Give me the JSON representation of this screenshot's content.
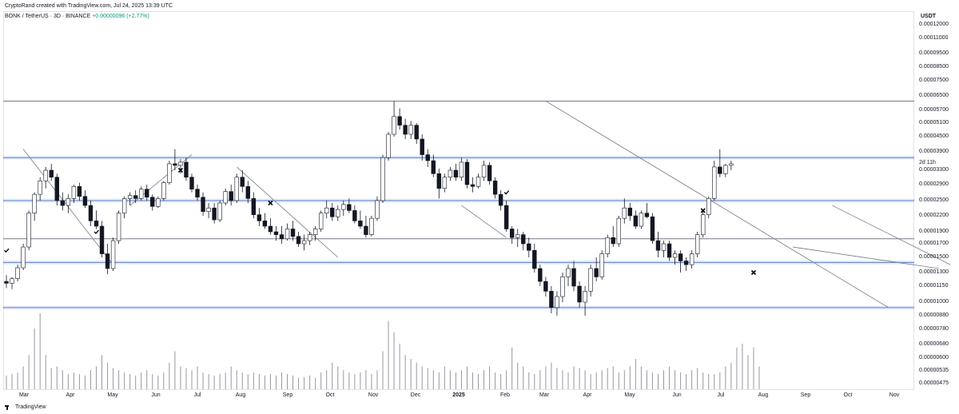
{
  "header": {
    "credit": "CryptoRand created with TradingView.com, Jul 24, 2025 13:39 UTC"
  },
  "symbol": {
    "name": "BONK / TetherUS · 3D · BINANCE",
    "change": "+0.00000096 (+2.77%)"
  },
  "axis": {
    "currency": "USDT",
    "countdown": "2d 11h"
  },
  "footer": {
    "brand": "TradingView"
  },
  "chart_data": {
    "type": "candlestick",
    "title": "",
    "xlabel": "",
    "ylabel": "",
    "price_ticks": [
      "0.00012000",
      "0.00011000",
      "0.00009500",
      "0.00008500",
      "0.00007500",
      "0.00006500",
      "0.00005700",
      "0.00005100",
      "0.00004500",
      "0.00003900",
      "0.00003300",
      "0.00002900",
      "0.00002500",
      "0.00002200",
      "0.00001900",
      "0.00001700",
      "0.00001500",
      "0.00001300",
      "0.00001150",
      "0.00001000",
      "0.00000880",
      "0.00000780",
      "0.00000680",
      "0.00000600",
      "0.00000535",
      "0.00000475"
    ],
    "time_ticks": [
      "Mar",
      "Apr",
      "May",
      "Jun",
      "Jul",
      "Aug",
      "Sep",
      "Oct",
      "Nov",
      "Dec",
      "2025",
      "Feb",
      "Mar",
      "Apr",
      "May",
      "Jun",
      "Jul",
      "Aug",
      "Sep",
      "Oct",
      "Nov"
    ],
    "horizontal_levels": [
      {
        "price": 6.2e-05,
        "style": "gray"
      },
      {
        "price": 3.7e-05,
        "style": "blue"
      },
      {
        "price": 2.5e-05,
        "style": "blue"
      },
      {
        "price": 1.78e-05,
        "style": "gray"
      },
      {
        "price": 1.43e-05,
        "style": "blue"
      },
      {
        "price": 9.5e-06,
        "style": "blue"
      }
    ],
    "grid": false,
    "candles": [
      [
        1.2e-05,
        1.27e-05,
        1.13e-05,
        1.18e-05
      ],
      [
        1.18e-05,
        1.25e-05,
        1.12e-05,
        1.23e-05
      ],
      [
        1.23e-05,
        1.4e-05,
        1.2e-05,
        1.36e-05
      ],
      [
        1.36e-05,
        1.7e-05,
        1.33e-05,
        1.65e-05
      ],
      [
        1.65e-05,
        2.3e-05,
        1.6e-05,
        2.25e-05
      ],
      [
        2.25e-05,
        2.7e-05,
        2.1e-05,
        2.65e-05
      ],
      [
        2.65e-05,
        3.1e-05,
        2.5e-05,
        3e-05
      ],
      [
        3e-05,
        3.4e-05,
        2.8e-05,
        3.3e-05
      ],
      [
        3.3e-05,
        3.5e-05,
        3e-05,
        3.1e-05
      ],
      [
        3.1e-05,
        3.2e-05,
        2.4e-05,
        2.5e-05
      ],
      [
        2.5e-05,
        2.7e-05,
        2.3e-05,
        2.4e-05
      ],
      [
        2.4e-05,
        2.65e-05,
        2.25e-05,
        2.55e-05
      ],
      [
        2.55e-05,
        2.9e-05,
        2.45e-05,
        2.85e-05
      ],
      [
        2.85e-05,
        2.95e-05,
        2.5e-05,
        2.6e-05
      ],
      [
        2.6e-05,
        2.75e-05,
        2.35e-05,
        2.4e-05
      ],
      [
        2.4e-05,
        2.5e-05,
        2e-05,
        2.1e-05
      ],
      [
        2.1e-05,
        2.3e-05,
        1.95e-05,
        2e-05
      ],
      [
        2e-05,
        2.1e-05,
        1.5e-05,
        1.55e-05
      ],
      [
        1.55e-05,
        1.7e-05,
        1.28e-05,
        1.35e-05
      ],
      [
        1.35e-05,
        1.8e-05,
        1.32e-05,
        1.75e-05
      ],
      [
        1.75e-05,
        2.3e-05,
        1.7e-05,
        2.25e-05
      ],
      [
        2.25e-05,
        2.6e-05,
        2.15e-05,
        2.55e-05
      ],
      [
        2.55e-05,
        2.7e-05,
        2.4e-05,
        2.62e-05
      ],
      [
        2.62e-05,
        2.75e-05,
        2.45e-05,
        2.55e-05
      ],
      [
        2.55e-05,
        2.85e-05,
        2.5e-05,
        2.78e-05
      ],
      [
        2.78e-05,
        2.9e-05,
        2.5e-05,
        2.58e-05
      ],
      [
        2.58e-05,
        2.65e-05,
        2.3e-05,
        2.38e-05
      ],
      [
        2.38e-05,
        2.6e-05,
        2.35e-05,
        2.55e-05
      ],
      [
        2.55e-05,
        3e-05,
        2.5e-05,
        2.95e-05
      ],
      [
        2.95e-05,
        3.6e-05,
        2.9e-05,
        3.5e-05
      ],
      [
        3.5e-05,
        4e-05,
        3.3e-05,
        3.45e-05
      ],
      [
        3.45e-05,
        3.65e-05,
        3.2e-05,
        3.55e-05
      ],
      [
        3.55e-05,
        3.7e-05,
        3e-05,
        3.1e-05
      ],
      [
        3.1e-05,
        3.2e-05,
        2.7e-05,
        2.78e-05
      ],
      [
        2.78e-05,
        2.9e-05,
        2.5e-05,
        2.58e-05
      ],
      [
        2.58e-05,
        2.7e-05,
        2.2e-05,
        2.28e-05
      ],
      [
        2.28e-05,
        2.45e-05,
        2.15e-05,
        2.35e-05
      ],
      [
        2.35e-05,
        2.45e-05,
        2.05e-05,
        2.12e-05
      ],
      [
        2.12e-05,
        2.5e-05,
        2.08e-05,
        2.45e-05
      ],
      [
        2.45e-05,
        2.8e-05,
        2.4e-05,
        2.72e-05
      ],
      [
        2.72e-05,
        2.9e-05,
        2.4e-05,
        2.5e-05
      ],
      [
        2.5e-05,
        3.2e-05,
        2.45e-05,
        3.1e-05
      ],
      [
        3.1e-05,
        3.3e-05,
        2.7e-05,
        2.85e-05
      ],
      [
        2.85e-05,
        3e-05,
        2.45e-05,
        2.55e-05
      ],
      [
        2.55e-05,
        2.7e-05,
        2.15e-05,
        2.22e-05
      ],
      [
        2.22e-05,
        2.35e-05,
        2e-05,
        2.1e-05
      ],
      [
        2.1e-05,
        2.25e-05,
        1.95e-05,
        2e-05
      ],
      [
        2e-05,
        2.15e-05,
        1.85e-05,
        1.9e-05
      ],
      [
        1.9e-05,
        2e-05,
        1.75e-05,
        1.85e-05
      ],
      [
        1.85e-05,
        2e-05,
        1.7e-05,
        1.78e-05
      ],
      [
        1.78e-05,
        2.05e-05,
        1.75e-05,
        1.95e-05
      ],
      [
        1.95e-05,
        2.1e-05,
        1.75e-05,
        1.82e-05
      ],
      [
        1.82e-05,
        1.9e-05,
        1.65e-05,
        1.7e-05
      ],
      [
        1.7e-05,
        1.85e-05,
        1.6e-05,
        1.75e-05
      ],
      [
        1.75e-05,
        1.9e-05,
        1.68e-05,
        1.85e-05
      ],
      [
        1.85e-05,
        2e-05,
        1.75e-05,
        1.95e-05
      ],
      [
        1.95e-05,
        2.3e-05,
        1.9e-05,
        2.25e-05
      ],
      [
        2.25e-05,
        2.5e-05,
        2.15e-05,
        2.35e-05
      ],
      [
        2.35e-05,
        2.45e-05,
        2.1e-05,
        2.18e-05
      ],
      [
        2.18e-05,
        2.4e-05,
        2.1e-05,
        2.32e-05
      ],
      [
        2.32e-05,
        2.5e-05,
        2.2e-05,
        2.42e-05
      ],
      [
        2.42e-05,
        2.55e-05,
        2.25e-05,
        2.3e-05
      ],
      [
        2.3e-05,
        2.4e-05,
        2.05e-05,
        2.1e-05
      ],
      [
        2.1e-05,
        2.3e-05,
        1.95e-05,
        2e-05
      ],
      [
        2e-05,
        2.2e-05,
        1.8e-05,
        1.85e-05
      ],
      [
        1.85e-05,
        2.2e-05,
        1.82e-05,
        2.15e-05
      ],
      [
        2.15e-05,
        2.6e-05,
        2.1e-05,
        2.5e-05
      ],
      [
        2.5e-05,
        3.8e-05,
        2.45e-05,
        3.7e-05
      ],
      [
        3.7e-05,
        4.7e-05,
        3.6e-05,
        4.6e-05
      ],
      [
        4.6e-05,
        6.2e-05,
        4.5e-05,
        5.4e-05
      ],
      [
        5.4e-05,
        5.8e-05,
        4.8e-05,
        5e-05
      ],
      [
        5e-05,
        5.3e-05,
        4.4e-05,
        4.6e-05
      ],
      [
        4.6e-05,
        5.2e-05,
        4.4e-05,
        5e-05
      ],
      [
        5e-05,
        5.1e-05,
        4.2e-05,
        4.4e-05
      ],
      [
        4.4e-05,
        4.6e-05,
        3.6e-05,
        3.8e-05
      ],
      [
        3.8e-05,
        4e-05,
        3.4e-05,
        3.6e-05
      ],
      [
        3.6e-05,
        3.8e-05,
        3.1e-05,
        3.2e-05
      ],
      [
        3.2e-05,
        3.35e-05,
        2.55e-05,
        2.8e-05
      ],
      [
        2.8e-05,
        3.2e-05,
        2.7e-05,
        3.1e-05
      ],
      [
        3.1e-05,
        3.4e-05,
        3e-05,
        3.3e-05
      ],
      [
        3.3e-05,
        3.5e-05,
        3e-05,
        3.1e-05
      ],
      [
        3.1e-05,
        3.7e-05,
        3e-05,
        3.55e-05
      ],
      [
        3.55e-05,
        3.65e-05,
        2.8e-05,
        2.9e-05
      ],
      [
        2.9e-05,
        3.1e-05,
        2.7e-05,
        2.85e-05
      ],
      [
        2.85e-05,
        3.2e-05,
        2.8e-05,
        3.1e-05
      ],
      [
        3.1e-05,
        3.6e-05,
        3e-05,
        3.45e-05
      ],
      [
        3.45e-05,
        3.55e-05,
        2.9e-05,
        3e-05
      ],
      [
        3e-05,
        3.1e-05,
        2.55e-05,
        2.65e-05
      ],
      [
        2.65e-05,
        2.75e-05,
        2.3e-05,
        2.4e-05
      ],
      [
        2.4e-05,
        2.5e-05,
        1.9e-05,
        1.95e-05
      ],
      [
        1.95e-05,
        2e-05,
        1.7e-05,
        1.8e-05
      ],
      [
        1.8e-05,
        1.95e-05,
        1.65e-05,
        1.85e-05
      ],
      [
        1.85e-05,
        1.9e-05,
        1.6e-05,
        1.7e-05
      ],
      [
        1.7e-05,
        1.8e-05,
        1.5e-05,
        1.6e-05
      ],
      [
        1.6e-05,
        1.7e-05,
        1.3e-05,
        1.35e-05
      ],
      [
        1.35e-05,
        1.4e-05,
        1.15e-05,
        1.2e-05
      ],
      [
        1.2e-05,
        1.25e-05,
        1.05e-05,
        1.1e-05
      ],
      [
        1.1e-05,
        1.15e-05,
        9e-06,
        9.5e-06
      ],
      [
        9.5e-06,
        1.1e-05,
        8.8e-06,
        1.05e-05
      ],
      [
        1.05e-05,
        1.3e-05,
        1e-05,
        1.25e-05
      ],
      [
        1.25e-05,
        1.4e-05,
        1.15e-05,
        1.35e-05
      ],
      [
        1.35e-05,
        1.45e-05,
        1.1e-05,
        1.15e-05
      ],
      [
        1.15e-05,
        1.2e-05,
        9.5e-06,
        1e-05
      ],
      [
        1e-05,
        1.15e-05,
        8.8e-06,
        1.1e-05
      ],
      [
        1.1e-05,
        1.4e-05,
        1.05e-05,
        1.35e-05
      ],
      [
        1.35e-05,
        1.5e-05,
        1.2e-05,
        1.25e-05
      ],
      [
        1.25e-05,
        1.6e-05,
        1.22e-05,
        1.55e-05
      ],
      [
        1.55e-05,
        1.85e-05,
        1.5e-05,
        1.8e-05
      ],
      [
        1.8e-05,
        2e-05,
        1.65e-05,
        1.7e-05
      ],
      [
        1.7e-05,
        2.2e-05,
        1.65e-05,
        2.15e-05
      ],
      [
        2.15e-05,
        2.55e-05,
        2.05e-05,
        2.35e-05
      ],
      [
        2.35e-05,
        2.45e-05,
        2.1e-05,
        2.2e-05
      ],
      [
        2.2e-05,
        2.3e-05,
        1.95e-05,
        2e-05
      ],
      [
        2e-05,
        2.3e-05,
        1.95e-05,
        2.25e-05
      ],
      [
        2.25e-05,
        2.45e-05,
        2.15e-05,
        2.18e-05
      ],
      [
        2.18e-05,
        2.25e-05,
        1.7e-05,
        1.75e-05
      ],
      [
        1.75e-05,
        1.9e-05,
        1.5e-05,
        1.6e-05
      ],
      [
        1.6e-05,
        1.75e-05,
        1.5e-05,
        1.7e-05
      ],
      [
        1.7e-05,
        1.75e-05,
        1.45e-05,
        1.5e-05
      ],
      [
        1.5e-05,
        1.6e-05,
        1.4e-05,
        1.55e-05
      ],
      [
        1.55e-05,
        1.6e-05,
        1.3e-05,
        1.45e-05
      ],
      [
        1.45e-05,
        1.5e-05,
        1.32e-05,
        1.4e-05
      ],
      [
        1.4e-05,
        1.6e-05,
        1.35e-05,
        1.55e-05
      ],
      [
        1.55e-05,
        1.9e-05,
        1.5e-05,
        1.85e-05
      ],
      [
        1.85e-05,
        2.3e-05,
        1.8e-05,
        2.22e-05
      ],
      [
        2.22e-05,
        2.6e-05,
        2.15e-05,
        2.55e-05
      ],
      [
        2.55e-05,
        3.6e-05,
        2.5e-05,
        3.4e-05
      ],
      [
        3.4e-05,
        4e-05,
        3.1e-05,
        3.2e-05
      ],
      [
        3.2e-05,
        3.5e-05,
        3.1e-05,
        3.45e-05
      ],
      [
        3.45e-05,
        3.6e-05,
        3.3e-05,
        3.5e-05
      ]
    ],
    "volume": [
      0.18,
      0.2,
      0.22,
      0.3,
      0.45,
      0.8,
      1.0,
      0.45,
      0.28,
      0.3,
      0.25,
      0.2,
      0.22,
      0.2,
      0.18,
      0.25,
      0.3,
      0.45,
      0.35,
      0.28,
      0.25,
      0.22,
      0.2,
      0.18,
      0.22,
      0.25,
      0.2,
      0.18,
      0.22,
      0.35,
      0.5,
      0.3,
      0.28,
      0.25,
      0.3,
      0.22,
      0.2,
      0.18,
      0.2,
      0.22,
      0.3,
      0.25,
      0.22,
      0.2,
      0.22,
      0.2,
      0.18,
      0.2,
      0.18,
      0.22,
      0.2,
      0.18,
      0.15,
      0.16,
      0.18,
      0.15,
      0.22,
      0.25,
      0.35,
      0.3,
      0.25,
      0.22,
      0.2,
      0.22,
      0.25,
      0.2,
      0.25,
      0.5,
      0.9,
      0.75,
      0.6,
      0.45,
      0.4,
      0.35,
      0.3,
      0.28,
      0.25,
      0.22,
      0.3,
      0.25,
      0.22,
      0.25,
      0.3,
      0.22,
      0.2,
      0.25,
      0.3,
      0.22,
      0.2,
      0.25,
      0.55,
      0.35,
      0.3,
      0.22,
      0.2,
      0.25,
      0.3,
      0.35,
      0.28,
      0.25,
      0.22,
      0.3,
      0.28,
      0.25,
      0.2,
      0.22,
      0.25,
      0.28,
      0.3,
      0.22,
      0.25,
      0.3,
      0.4,
      0.3,
      0.25,
      0.22,
      0.2,
      0.25,
      0.3,
      0.25,
      0.22,
      0.2,
      0.25,
      0.28,
      0.22,
      0.2,
      0.2,
      0.22,
      0.3,
      0.35,
      0.55,
      0.6,
      0.45,
      0.55,
      0.3
    ],
    "trendlines": [
      {
        "from": [
          -46,
          4e-05
        ],
        "to": [
          -30,
          1.4e-05
        ]
      },
      {
        "from": [
          -27,
          2.4e-05
        ],
        "to": [
          -16,
          3.8e-05
        ]
      },
      {
        "from": [
          -8,
          3.4e-05
        ],
        "to": [
          10,
          1.5e-05
        ]
      },
      {
        "from": [
          32,
          2.4e-05
        ],
        "to": [
          40,
          1.8e-05
        ]
      },
      {
        "from": [
          47,
          6.2e-05
        ],
        "to": [
          108,
          9.5e-06
        ]
      },
      {
        "from": [
          98,
          2.4e-05
        ],
        "to": [
          119,
          1.4e-05
        ]
      },
      {
        "from": [
          91,
          1.65e-05
        ],
        "to": [
          117,
          1.35e-05
        ]
      },
      {
        "from": [
          123,
          4e-05
        ],
        "to": [
          127,
          3.6e-05
        ]
      },
      {
        "from": [
          124,
          3.2e-05
        ],
        "to": [
          127,
          3.3e-05
        ]
      }
    ],
    "markers": [
      {
        "type": "check",
        "index": -49,
        "price": 1.6e-05
      },
      {
        "type": "check",
        "index": -33,
        "price": 1.9e-05
      },
      {
        "type": "x",
        "index": -18,
        "price": 3.3e-05
      },
      {
        "type": "x",
        "index": -2,
        "price": 2.45e-05
      },
      {
        "type": "check",
        "index": 40,
        "price": 2.7e-05
      },
      {
        "type": "x",
        "index": 75,
        "price": 2.3e-05
      },
      {
        "type": "x",
        "index": 84,
        "price": 1.3e-05
      }
    ]
  },
  "colors": {
    "level_blue": "#2962ff",
    "level_gray": "#787b86",
    "candle_down": "#131722",
    "candle_up": "#ffffff",
    "volume": "#9598a1"
  }
}
